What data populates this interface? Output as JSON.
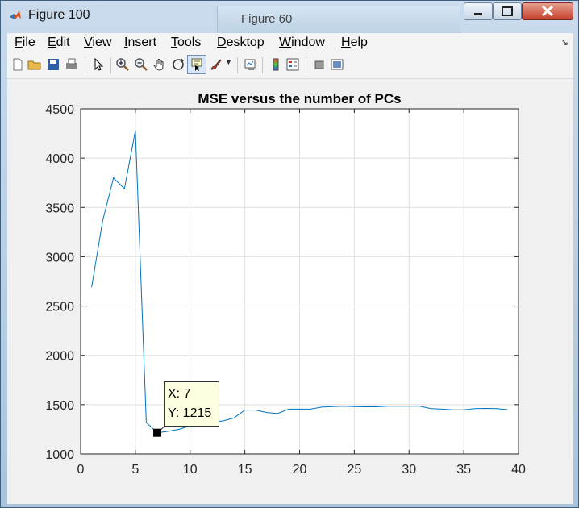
{
  "window": {
    "title": "Figure 100",
    "background_title": "Figure 60",
    "controls": [
      "minimize",
      "maximize",
      "close"
    ]
  },
  "menu": {
    "items": [
      {
        "id": "file",
        "label": "File",
        "mnemonic": "F"
      },
      {
        "id": "edit",
        "label": "Edit",
        "mnemonic": "E"
      },
      {
        "id": "view",
        "label": "View",
        "mnemonic": "V"
      },
      {
        "id": "insert",
        "label": "Insert",
        "mnemonic": "I"
      },
      {
        "id": "tools",
        "label": "Tools",
        "mnemonic": "T"
      },
      {
        "id": "desktop",
        "label": "Desktop",
        "mnemonic": "D"
      },
      {
        "id": "window",
        "label": "Window",
        "mnemonic": "W"
      },
      {
        "id": "help",
        "label": "Help",
        "mnemonic": "H"
      }
    ]
  },
  "toolbar": {
    "buttons": [
      "new-figure-icon",
      "open-file-icon",
      "save-icon",
      "print-icon",
      "edit-plot-arrow-icon",
      "zoom-in-icon",
      "zoom-out-icon",
      "pan-hand-icon",
      "rotate-3d-icon",
      "data-cursor-icon",
      "brush-icon",
      "link-plot-icon",
      "colorbar-icon",
      "legend-icon",
      "hide-plot-tools-icon",
      "show-plot-tools-icon"
    ],
    "active": "data-cursor-icon"
  },
  "chart_data": {
    "type": "line",
    "title": "MSE versus the number of PCs",
    "xlabel": "",
    "ylabel": "",
    "xlim": [
      0,
      40
    ],
    "ylim": [
      1000,
      4500
    ],
    "xticks": [
      0,
      5,
      10,
      15,
      20,
      25,
      30,
      35,
      40
    ],
    "yticks": [
      1000,
      1500,
      2000,
      2500,
      3000,
      3500,
      4000,
      4500
    ],
    "grid": true,
    "series": [
      {
        "color": "#0072bd",
        "x": [
          1,
          2,
          3,
          4,
          5,
          6,
          7,
          8,
          9,
          10,
          11,
          12,
          13,
          14,
          15,
          16,
          17,
          18,
          19,
          20,
          21,
          22,
          23,
          24,
          25,
          26,
          27,
          28,
          29,
          30,
          31,
          32,
          33,
          34,
          35,
          36,
          37,
          38,
          39
        ],
        "y": [
          2690,
          3360,
          3800,
          3690,
          4280,
          1320,
          1215,
          1230,
          1250,
          1285,
          1315,
          1325,
          1335,
          1365,
          1445,
          1445,
          1420,
          1410,
          1455,
          1455,
          1455,
          1475,
          1480,
          1485,
          1480,
          1478,
          1478,
          1485,
          1485,
          1485,
          1485,
          1460,
          1455,
          1448,
          1448,
          1460,
          1462,
          1460,
          1450
        ]
      }
    ],
    "datatip": {
      "x": 7,
      "y": 1215,
      "x_text": "X: 7",
      "y_text": "Y: 1215"
    }
  }
}
